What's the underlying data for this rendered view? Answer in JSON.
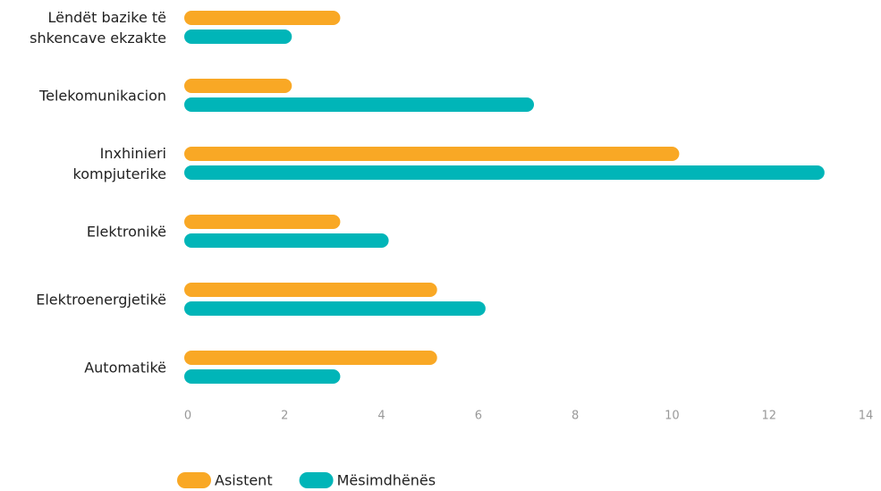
{
  "chart_data": {
    "type": "bar",
    "orientation": "horizontal",
    "categories": [
      "Lëndët bazike të shkencave ekzakte",
      "Telekomunikacion",
      "Inxhinieri kompjuterike",
      "Elektronikë",
      "Elektroenergjetikë",
      "Automatikë"
    ],
    "series": [
      {
        "name": "Asistent",
        "color": "#f9a825",
        "values": [
          3,
          2,
          10,
          3,
          5,
          5
        ]
      },
      {
        "name": "Mësimdhënës",
        "color": "#00b5b8",
        "values": [
          2,
          7,
          13,
          4,
          6,
          3
        ]
      }
    ],
    "xlim": [
      0,
      14
    ],
    "xticks": [
      0,
      2,
      4,
      6,
      8,
      10,
      12,
      14
    ],
    "grid": false,
    "legend": "bottom"
  }
}
